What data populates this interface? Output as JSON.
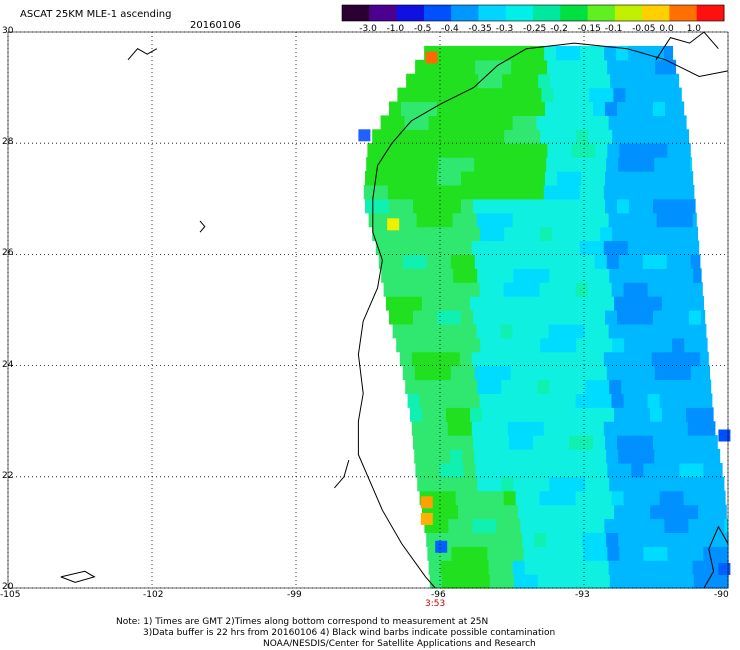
{
  "header": {
    "title": "ASCAT 25KM MLE-1 ascending",
    "date": "20160106"
  },
  "colorbar": {
    "labels": [
      "-3.0",
      "-1.0",
      "-0.5",
      "-0.4",
      "-0.35",
      "-0.3",
      "-0.25",
      "-0.2",
      "-0.15",
      "-0.1",
      "-0.05",
      "0.0",
      "1.0"
    ],
    "colors": [
      "#2a0033",
      "#4b0090",
      "#1010e0",
      "#0050ff",
      "#0098ff",
      "#00d4ff",
      "#00f0e8",
      "#00e8a0",
      "#00e040",
      "#60f020",
      "#c0f000",
      "#ffd000",
      "#ff7000",
      "#ff1010"
    ]
  },
  "chart_data": {
    "type": "heatmap",
    "title": "ASCAT 25KM MLE-1 ascending",
    "date": "20160106",
    "x_ticks": [
      "-105",
      "-102",
      "-99",
      "-96",
      "-93",
      "-90"
    ],
    "y_ticks": [
      "30",
      "28",
      "26",
      "24",
      "22",
      "20"
    ],
    "xlim": [
      -105,
      -90
    ],
    "ylim": [
      20,
      30
    ],
    "grid": true,
    "swath_time_label": "3:53",
    "swath_time_lon": -96,
    "swath_lat_range": [
      20,
      29.8
    ],
    "swath_edges": [
      {
        "lat": 29.8,
        "w": -96.2,
        "e": -91.2
      },
      {
        "lat": 29.0,
        "w": -96.8,
        "e": -91.0
      },
      {
        "lat": 28.0,
        "w": -97.5,
        "e": -90.8
      },
      {
        "lat": 27.0,
        "w": -97.6,
        "e": -90.7
      },
      {
        "lat": 26.0,
        "w": -97.3,
        "e": -90.6
      },
      {
        "lat": 25.0,
        "w": -97.1,
        "e": -90.5
      },
      {
        "lat": 24.0,
        "w": -96.8,
        "e": -90.4
      },
      {
        "lat": 23.0,
        "w": -96.6,
        "e": -90.3
      },
      {
        "lat": 22.0,
        "w": -96.5,
        "e": -90.1
      },
      {
        "lat": 21.0,
        "w": -96.3,
        "e": -90.0
      },
      {
        "lat": 20.0,
        "w": -96.2,
        "e": -90.0
      }
    ]
  },
  "notes": [
    "Note: 1) Times are GMT 2)Times along bottom correspond to measurement at 25N",
    "3)Data buffer is 22 hrs from 20160106 4) Black wind barbs indicate possible contamination",
    "NOAA/NESDIS/Center for Satellite Applications and Research"
  ]
}
